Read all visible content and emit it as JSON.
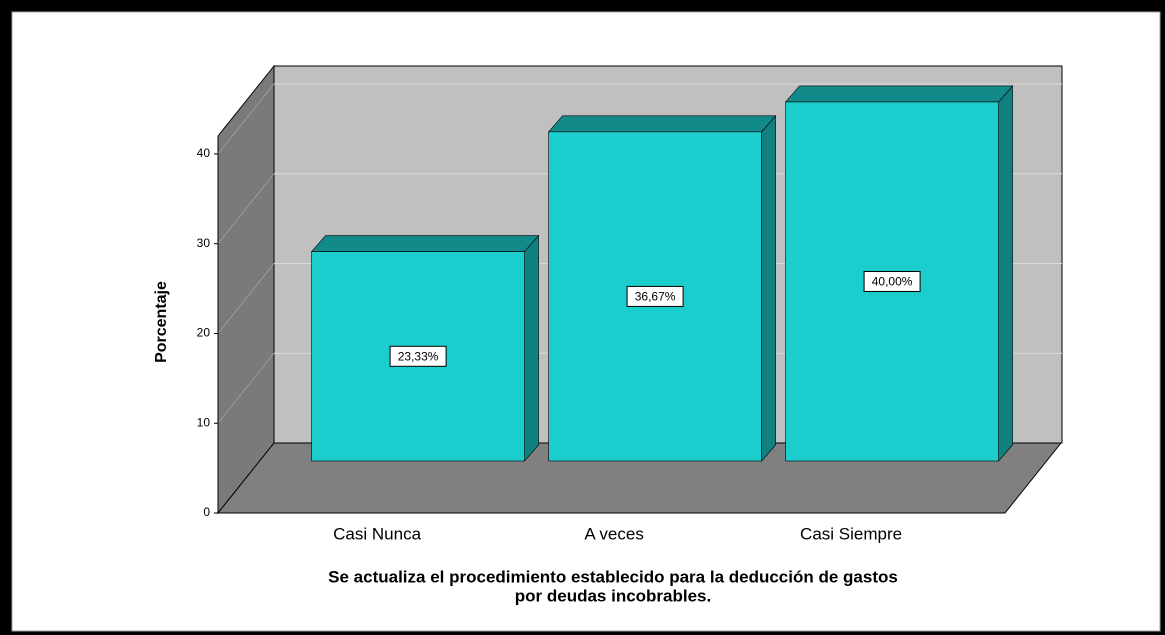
{
  "chart_data": {
    "type": "bar3d",
    "title": [
      "Se actualiza el procedimiento establecido para la deducción de gastos",
      "por deudas incobrables."
    ],
    "y_label": "Porcentaje",
    "categories": [
      "Casi Nunca",
      "A veces",
      "Casi Siempre"
    ],
    "values": [
      23.33,
      36.67,
      40.0
    ],
    "value_labels": [
      "23,33%",
      "36,67%",
      "40,00%"
    ],
    "color": "#1ccdcd",
    "ylim": [
      0,
      42
    ],
    "yticks": [
      0,
      10,
      20,
      30,
      40
    ],
    "grid": true
  }
}
